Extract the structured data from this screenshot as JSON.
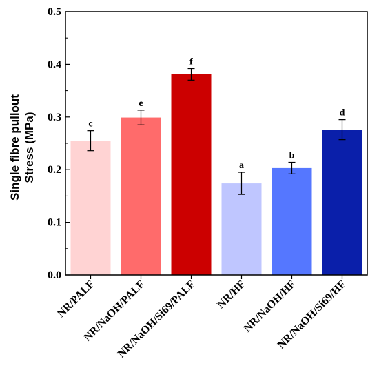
{
  "chart_data": {
    "type": "bar",
    "title": "",
    "xlabel": "",
    "ylabel_lines": [
      "Single fibre pullout",
      "Stress (MPa)"
    ],
    "ylim": [
      0.0,
      0.5
    ],
    "yticks": [
      "0.0",
      "0.1",
      "0.2",
      "0.3",
      "0.4",
      "0.5"
    ],
    "categories": [
      "NR/PALF",
      "NR/NaOH/PALF",
      "NR/NaOH/Si69/PALF",
      "NR/HF",
      "NR/NaOH/HF",
      "NR/NaOH/Si69/HF"
    ],
    "values": [
      0.255,
      0.299,
      0.381,
      0.174,
      0.203,
      0.276
    ],
    "errors": [
      0.019,
      0.014,
      0.011,
      0.021,
      0.011,
      0.019
    ],
    "significance_labels": [
      "c",
      "e",
      "f",
      "a",
      "b",
      "d"
    ],
    "colors": [
      "#FFD3D3",
      "#FF6B6B",
      "#CC0000",
      "#BFC6FF",
      "#5577FF",
      "#0A1FAA"
    ],
    "grid": false,
    "legend": "none"
  }
}
